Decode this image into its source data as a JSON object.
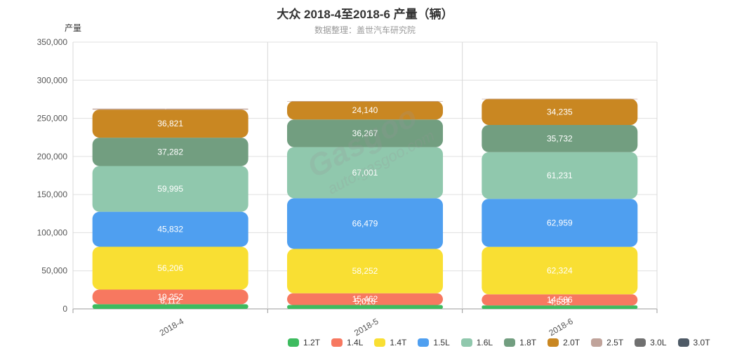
{
  "title": "大众 2018-4至2018-6 产量（辆）",
  "subtitle": "数据整理：盖世汽车研究院",
  "watermark": {
    "main": "Gasgoo",
    "sub": "auto.gasgoo.com"
  },
  "chart_data": {
    "type": "bar",
    "stacked": true,
    "ylabel": "产量",
    "ylim": [
      0,
      350000
    ],
    "yticks": [
      0,
      50000,
      100000,
      150000,
      200000,
      250000,
      300000,
      350000
    ],
    "categories": [
      "2018-4",
      "2018-5",
      "2018-6"
    ],
    "series": [
      {
        "name": "1.2T",
        "color": "#3dbb5f",
        "values": [
          6112,
          5016,
          4531
        ],
        "labels": [
          "6,112",
          "5,016",
          "4,531"
        ]
      },
      {
        "name": "1.4L",
        "color": "#f77860",
        "values": [
          19252,
          15462,
          14586
        ],
        "labels": [
          "19,252",
          "15,462",
          "14,586"
        ]
      },
      {
        "name": "1.4T",
        "color": "#f9df33",
        "values": [
          56206,
          58252,
          62324
        ],
        "labels": [
          "56,206",
          "58,252",
          "62,324"
        ]
      },
      {
        "name": "1.5L",
        "color": "#4f9ff0",
        "values": [
          45832,
          66479,
          62959
        ],
        "labels": [
          "45,832",
          "66,479",
          "62,959"
        ]
      },
      {
        "name": "1.6L",
        "color": "#90c8ad",
        "values": [
          59995,
          67001,
          61231
        ],
        "labels": [
          "59,995",
          "67,001",
          "61,231"
        ]
      },
      {
        "name": "1.8T",
        "color": "#729e80",
        "values": [
          37282,
          36267,
          35732
        ],
        "labels": [
          "37,282",
          "36,267",
          "35,732"
        ]
      },
      {
        "name": "2.0T",
        "color": "#c98722",
        "values": [
          36821,
          24140,
          34235
        ],
        "labels": [
          "36,821",
          "24,140",
          "34,235"
        ]
      },
      {
        "name": "2.5T",
        "color": "#c0a39a",
        "values": [
          1201,
          20,
          18
        ],
        "labels": [
          "1,201",
          "20",
          "18"
        ]
      },
      {
        "name": "3.0L",
        "color": "#707070",
        "values": [
          0,
          0,
          0
        ],
        "labels": [
          "",
          "",
          ""
        ]
      },
      {
        "name": "3.0T",
        "color": "#4e5a66",
        "values": [
          0,
          0,
          0
        ],
        "labels": [
          "",
          "",
          ""
        ]
      }
    ]
  }
}
